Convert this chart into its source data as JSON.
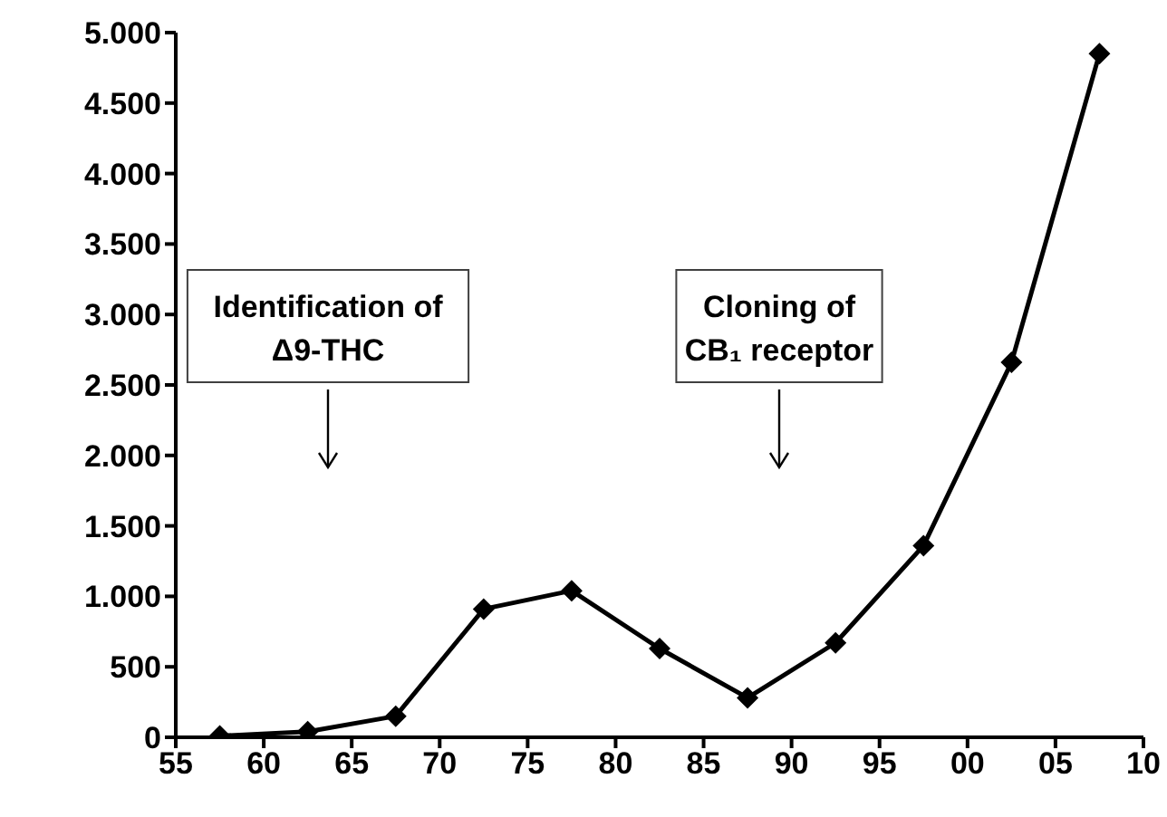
{
  "chart_data": {
    "type": "line",
    "x": [
      1957.5,
      1962.5,
      1967.5,
      1972.5,
      1977.5,
      1982.5,
      1987.5,
      1992.5,
      1997.5,
      2002.5,
      2007.5
    ],
    "series": [
      {
        "color": "#000000",
        "values": [
          10,
          40,
          150,
          910,
          1040,
          630,
          280,
          670,
          1360,
          2660,
          4850
        ]
      }
    ],
    "xlim": [
      1955,
      2010
    ],
    "xticks": [
      {
        "value": 1955,
        "label": "55"
      },
      {
        "value": 1960,
        "label": "60"
      },
      {
        "value": 1965,
        "label": "65"
      },
      {
        "value": 1970,
        "label": "70"
      },
      {
        "value": 1975,
        "label": "75"
      },
      {
        "value": 1980,
        "label": "80"
      },
      {
        "value": 1985,
        "label": "85"
      },
      {
        "value": 1990,
        "label": "90"
      },
      {
        "value": 1995,
        "label": "95"
      },
      {
        "value": 2000,
        "label": "00"
      },
      {
        "value": 2005,
        "label": "05"
      },
      {
        "value": 2010,
        "label": "10"
      }
    ],
    "ylim": [
      0,
      5000
    ],
    "yticks": [
      {
        "value": 0,
        "label": "0"
      },
      {
        "value": 500,
        "label": "500"
      },
      {
        "value": 1000,
        "label": "1.000"
      },
      {
        "value": 1500,
        "label": "1.500"
      },
      {
        "value": 2000,
        "label": "2.000"
      },
      {
        "value": 2500,
        "label": "2.500"
      },
      {
        "value": 3000,
        "label": "3.000"
      },
      {
        "value": 3500,
        "label": "3.500"
      },
      {
        "value": 4000,
        "label": "4.000"
      },
      {
        "value": 4500,
        "label": "4.500"
      },
      {
        "value": 5000,
        "label": "5.000"
      }
    ],
    "annotations": [
      "Identification of\nΔ9-THC",
      "Cloning of\nCB₁ receptor"
    ],
    "grid": false,
    "legend": false,
    "marker": "diamond",
    "line_style": "solid"
  }
}
